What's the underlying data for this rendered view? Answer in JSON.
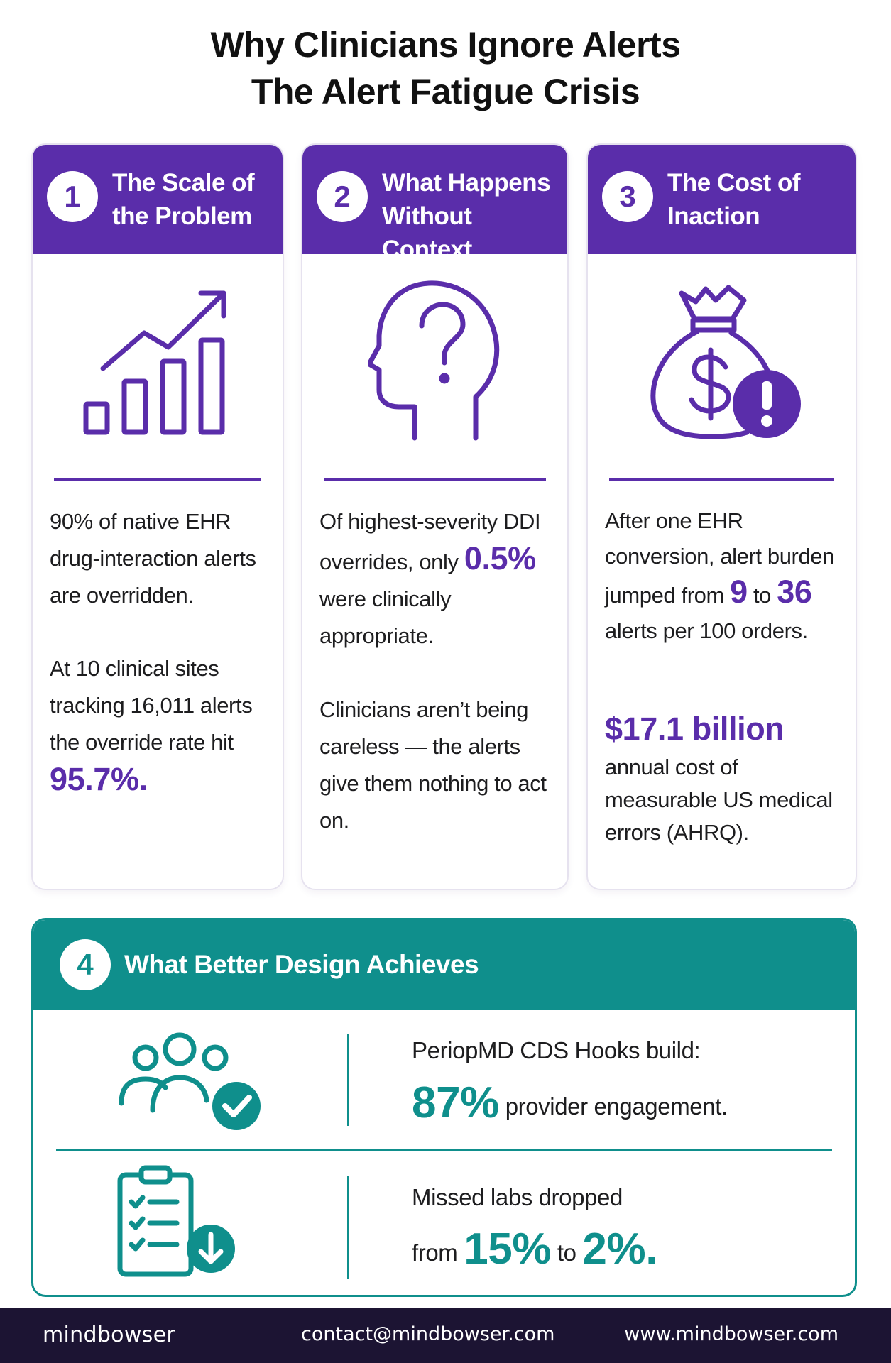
{
  "header": {
    "title_line1": "Why Clinicians Ignore Alerts",
    "title_line2": "The Alert Fatigue Crisis"
  },
  "colors": {
    "purple_accent": "#5a2daa",
    "teal_accent": "#0f8f8c",
    "footer_bg": "#1c1433"
  },
  "cards": [
    {
      "number": "1",
      "title_line1": "The Scale of",
      "title_line2": "the Problem",
      "icon": "bar-chart-trend-up-icon",
      "para1": "90% of native EHR drug-interaction alerts are overridden.",
      "para2_text": "At 10 clinical sites tracking 16,011 alerts the override rate hit",
      "para2_highlight": "95.7%."
    },
    {
      "number": "2",
      "title_line1": "What Happens",
      "title_line2": "Without Context",
      "icon": "head-question-icon",
      "para1_before": "Of highest-severity DDI overrides, only",
      "para1_highlight": "0.5%",
      "para1_after": "were clinically appropriate.",
      "para2": "Clinicians aren’t being careless — the alerts give them nothing to act on."
    },
    {
      "number": "3",
      "title_line1": "The Cost of",
      "title_line2": "Inaction",
      "icon": "money-bag-alert-icon",
      "para1_before": "After one EHR conversion, alert burden jumped from",
      "para1_from": "9",
      "para1_to_word": "to",
      "para1_to": "36",
      "para1_after": "alerts per 100 orders.",
      "para2_highlight": "$17.1 billion",
      "para2_text": "annual cost of measurable US medical errors (AHRQ)."
    }
  ],
  "section4": {
    "number": "4",
    "title": "What Better Design Achieves",
    "row1": {
      "icon": "users-check-icon",
      "line1": "PeriopMD CDS Hooks build:",
      "stat": "87%",
      "stat_after": "provider engagement."
    },
    "row2": {
      "icon": "clipboard-checklist-down-icon",
      "line1": "Missed labs dropped",
      "from_word": "from",
      "from_value": "15%",
      "to_word": "to",
      "to_value": "2%",
      "end": "."
    }
  },
  "footer": {
    "logo": "mindbowser",
    "email": "contact@mindbowser.com",
    "website": "www.mindbowser.com"
  }
}
